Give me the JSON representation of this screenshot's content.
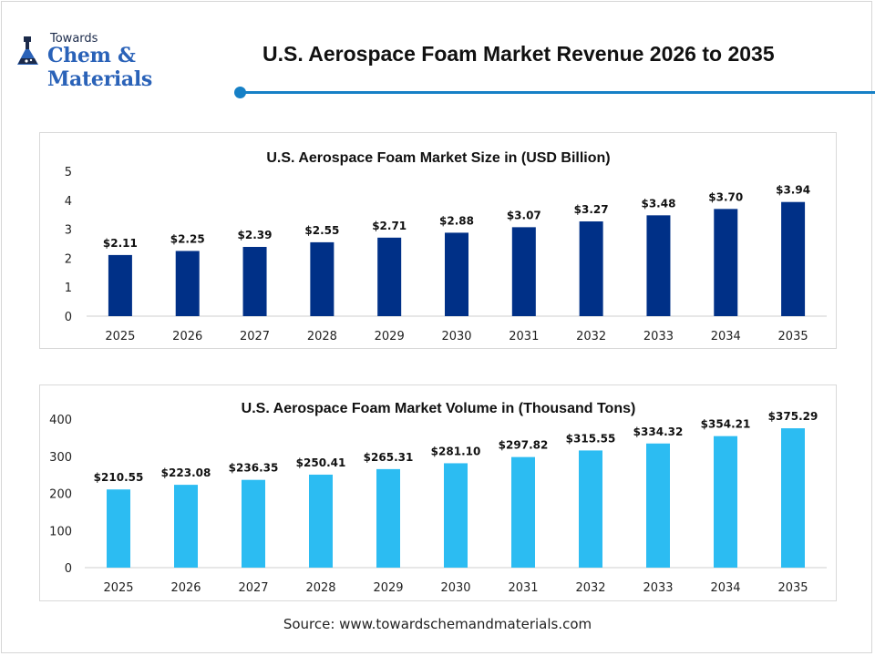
{
  "logo": {
    "top_text": "Towards",
    "main_text": "Chem & Materials"
  },
  "page_title": "U.S. Aerospace Foam Market Revenue 2026 to 2035",
  "source": "Source: www.towardschemandmaterials.com",
  "colors": {
    "size_bars": "#003087",
    "volume_bars": "#2cbcf2",
    "accent": "#1680c6"
  },
  "chart_data": [
    {
      "type": "bar",
      "title": "U.S. Aerospace Foam Market Size in (USD Billion)",
      "categories": [
        "2025",
        "2026",
        "2027",
        "2028",
        "2029",
        "2030",
        "2031",
        "2032",
        "2033",
        "2034",
        "2035"
      ],
      "values": [
        2.11,
        2.25,
        2.39,
        2.55,
        2.71,
        2.88,
        3.07,
        3.27,
        3.48,
        3.7,
        3.94
      ],
      "data_labels": [
        "$2.11",
        "$2.25",
        "$2.39",
        "$2.55",
        "$2.71",
        "$2.88",
        "$3.07",
        "$3.27",
        "$3.48",
        "$3.70",
        "$3.94"
      ],
      "yticks": [
        "0",
        "1",
        "2",
        "3",
        "4",
        "5"
      ],
      "ylim": [
        0,
        5
      ],
      "grid": false,
      "bar_color": "#003087"
    },
    {
      "type": "bar",
      "title": "U.S. Aerospace Foam Market Volume in (Thousand Tons)",
      "categories": [
        "2025",
        "2026",
        "2027",
        "2028",
        "2029",
        "2030",
        "2031",
        "2032",
        "2033",
        "2034",
        "2035"
      ],
      "values": [
        210.55,
        223.08,
        236.35,
        250.41,
        265.31,
        281.1,
        297.82,
        315.55,
        334.32,
        354.21,
        375.29
      ],
      "data_labels": [
        "$210.55",
        "$223.08",
        "$236.35",
        "$250.41",
        "$265.31",
        "$281.10",
        "$297.82",
        "$315.55",
        "$334.32",
        "$354.21",
        "$375.29"
      ],
      "yticks": [
        "0",
        "100",
        "200",
        "300",
        "400"
      ],
      "ylim": [
        0,
        400
      ],
      "grid": false,
      "bar_color": "#2cbcf2"
    }
  ]
}
